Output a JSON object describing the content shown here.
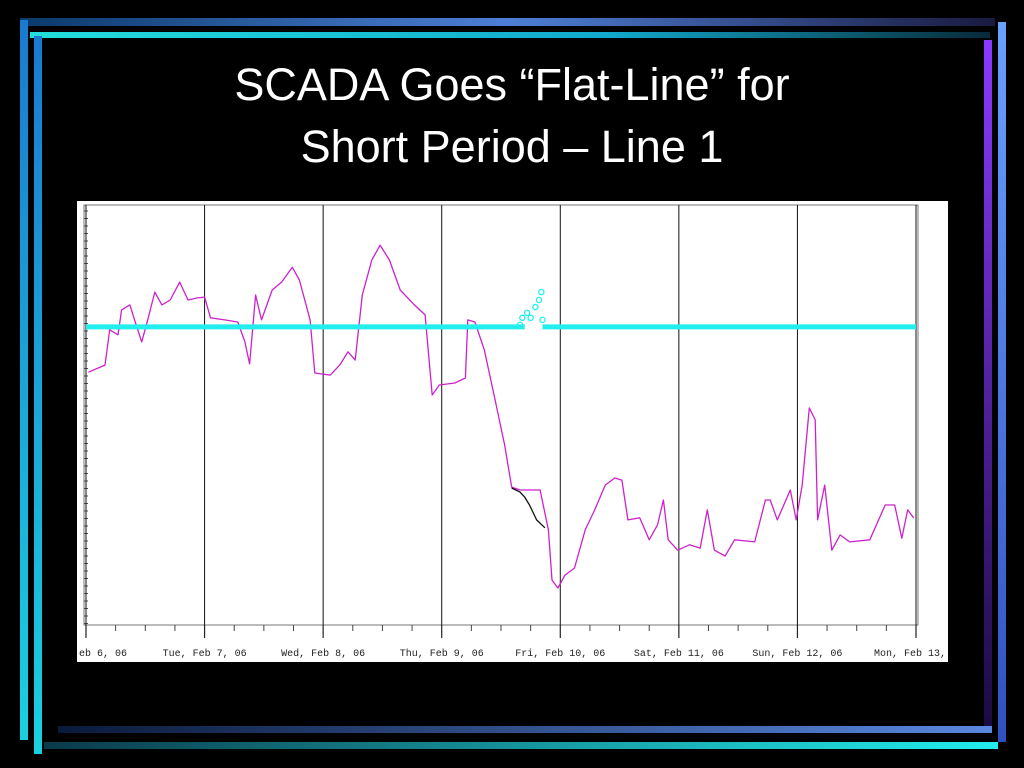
{
  "slide": {
    "title_lines": [
      "SCADA Goes “Flat-Line” for",
      "Short Period – Line 1"
    ]
  },
  "chart_data": {
    "type": "line",
    "xlim": [
      0,
      7
    ],
    "ylim": [
      0,
      100
    ],
    "grid": true,
    "xticks": [
      {
        "value": 0,
        "label": "eb 6, 06"
      },
      {
        "value": 1,
        "label": "Tue, Feb 7, 06"
      },
      {
        "value": 2,
        "label": "Wed, Feb 8, 06"
      },
      {
        "value": 3,
        "label": "Thu, Feb 9, 06"
      },
      {
        "value": 4,
        "label": "Fri, Feb 10, 06"
      },
      {
        "value": 5,
        "label": "Sat, Feb 11, 06"
      },
      {
        "value": 6,
        "label": "Sun, Feb 12, 06"
      },
      {
        "value": 7,
        "label": "Mon, Feb 13,"
      }
    ],
    "series": [
      {
        "color": "#cc22cc",
        "style": "line",
        "x": [
          0.02,
          0.16,
          0.2,
          0.27,
          0.3,
          0.37,
          0.41,
          0.47,
          0.52,
          0.58,
          0.64,
          0.71,
          0.79,
          0.86,
          0.94,
          1.0,
          1.05,
          1.17,
          1.28,
          1.34,
          1.38,
          1.43,
          1.48,
          1.57,
          1.65,
          1.74,
          1.8,
          1.89,
          1.93,
          2.06,
          2.14,
          2.21,
          2.27,
          2.33,
          2.41,
          2.48,
          2.56,
          2.65,
          2.77,
          2.86,
          2.92,
          2.98,
          3.11,
          3.2,
          3.22,
          3.28,
          3.36,
          3.45,
          3.53,
          3.59,
          3.66,
          3.83,
          3.9,
          3.93,
          3.98,
          4.04,
          4.12,
          4.21,
          4.29,
          4.38,
          4.46,
          4.52,
          4.57,
          4.67,
          4.75,
          4.82,
          4.87,
          4.91,
          4.99,
          5.09,
          5.18,
          5.24,
          5.3,
          5.39,
          5.47,
          5.64,
          5.73,
          5.77,
          5.83,
          5.94,
          5.99,
          6.04,
          6.1,
          6.15,
          6.17,
          6.23,
          6.29,
          6.36,
          6.44,
          6.61,
          6.74,
          6.82,
          6.88,
          6.93,
          6.98
        ],
        "values": [
          60.2,
          61.9,
          70.4,
          69.2,
          75.2,
          76.4,
          72.8,
          67.5,
          72.8,
          79.5,
          76.4,
          77.6,
          81.9,
          77.6,
          78.1,
          78.3,
          73.3,
          72.8,
          72.3,
          67.5,
          62.2,
          78.8,
          72.8,
          80.0,
          81.9,
          85.5,
          82.4,
          72.8,
          60.0,
          59.5,
          61.9,
          65.1,
          63.1,
          78.8,
          87.2,
          90.8,
          87.2,
          80.0,
          76.4,
          74.0,
          54.7,
          57.1,
          57.6,
          58.8,
          72.8,
          72.3,
          65.5,
          53.5,
          42.7,
          32.5,
          31.8,
          31.8,
          22.2,
          10.1,
          8.2,
          11.3,
          13.0,
          22.2,
          27.0,
          33.0,
          34.7,
          34.2,
          24.6,
          25.1,
          19.8,
          23.4,
          29.4,
          19.8,
          17.3,
          18.6,
          17.8,
          27.0,
          17.3,
          15.9,
          19.8,
          19.3,
          29.4,
          29.4,
          24.6,
          31.8,
          24.6,
          33.0,
          51.6,
          48.7,
          24.6,
          33.0,
          17.3,
          21.0,
          19.3,
          19.8,
          28.2,
          28.2,
          20.2,
          27.0,
          25.1
        ]
      },
      {
        "color": "#111111",
        "style": "line",
        "x": [
          3.59,
          3.66,
          3.7,
          3.74,
          3.8,
          3.87
        ],
        "values": [
          32.3,
          31.3,
          30.1,
          28.2,
          24.6,
          22.7
        ]
      },
      {
        "color": "#22eeee",
        "style": "thick-line",
        "x": [
          0,
          3.7,
          3.78,
          3.85,
          7
        ],
        "values": [
          71.1,
          71.1,
          null,
          71.1,
          71.1
        ]
      },
      {
        "color": "#22eeee",
        "style": "markers",
        "x": [
          3.66,
          3.68,
          3.72,
          3.75,
          3.79,
          3.82,
          3.84,
          3.85
        ],
        "values": [
          71.6,
          73.3,
          74.5,
          73.3,
          75.9,
          77.6,
          79.5,
          72.8
        ]
      }
    ]
  }
}
